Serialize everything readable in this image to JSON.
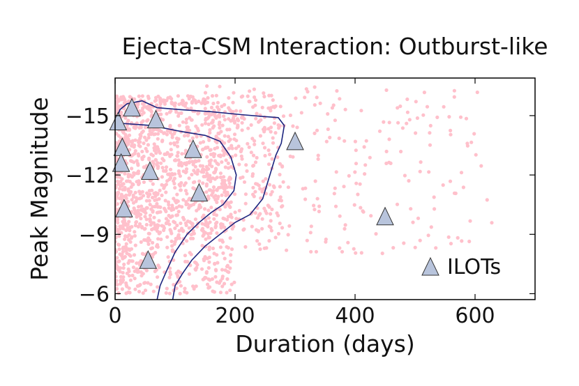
{
  "chart_data": {
    "type": "scatter",
    "title": "Ejecta-CSM Interaction: Outburst-like",
    "xlabel": "Duration (days)",
    "ylabel": "Peak Magnitude",
    "xlim": [
      0,
      700
    ],
    "ylim": [
      -5.7,
      -16.9
    ],
    "x_ticks": [
      0,
      200,
      400,
      600
    ],
    "y_ticks": [
      -6,
      -9,
      -12,
      -15
    ],
    "y_tick_labels": [
      "−6",
      "−9",
      "−12",
      "−15"
    ],
    "grid": false,
    "legend": {
      "position": "bottom-right",
      "entries": [
        "ILOTs"
      ]
    },
    "colors": {
      "simulated_points": "#ffc0cb",
      "contour": "#1a237e",
      "ilot_fill": "#b8c4dc",
      "ilot_edge": "#333333",
      "axis": "#000000"
    },
    "series": [
      {
        "name": "ILOTs",
        "marker": "triangle",
        "points": [
          [
            5,
            -14.7
          ],
          [
            12,
            -13.4
          ],
          [
            10,
            -12.6
          ],
          [
            15,
            -10.3
          ],
          [
            28,
            -15.4
          ],
          [
            58,
            -12.2
          ],
          [
            68,
            -14.8
          ],
          [
            55,
            -7.7
          ],
          [
            130,
            -13.3
          ],
          [
            140,
            -11.1
          ],
          [
            300,
            -13.7
          ],
          [
            450,
            -9.9
          ]
        ]
      },
      {
        "name": "Simulated ejecta-CSM events",
        "marker": "circle",
        "description": "dense scatter concentrated at short durations (0-250 d), peak magnitudes -6 to -16.5, sparse tail out to ~630 d",
        "count_approx": 1800
      },
      {
        "name": "Outer contour",
        "marker": "line",
        "path": [
          [
            0,
            -14.6
          ],
          [
            8,
            -15.3
          ],
          [
            20,
            -15.6
          ],
          [
            45,
            -15.75
          ],
          [
            70,
            -15.4
          ],
          [
            110,
            -15.3
          ],
          [
            160,
            -15.2
          ],
          [
            210,
            -15.05
          ],
          [
            250,
            -14.95
          ],
          [
            272,
            -14.9
          ],
          [
            282,
            -14.5
          ],
          [
            277,
            -13.6
          ],
          [
            268,
            -13.0
          ],
          [
            258,
            -12.0
          ],
          [
            246,
            -10.8
          ],
          [
            225,
            -10.0
          ],
          [
            200,
            -9.6
          ],
          [
            175,
            -9.0
          ],
          [
            150,
            -8.4
          ],
          [
            128,
            -7.7
          ],
          [
            112,
            -7.0
          ],
          [
            100,
            -6.4
          ],
          [
            96,
            -5.7
          ]
        ]
      },
      {
        "name": "Inner contour",
        "marker": "line",
        "path": [
          [
            0,
            -14.5
          ],
          [
            15,
            -14.6
          ],
          [
            60,
            -14.5
          ],
          [
            110,
            -14.2
          ],
          [
            150,
            -14.0
          ],
          [
            175,
            -13.7
          ],
          [
            193,
            -12.9
          ],
          [
            202,
            -12.0
          ],
          [
            198,
            -11.2
          ],
          [
            180,
            -10.5
          ],
          [
            160,
            -10.1
          ],
          [
            140,
            -9.6
          ],
          [
            120,
            -9.0
          ],
          [
            100,
            -8.1
          ],
          [
            85,
            -7.1
          ],
          [
            75,
            -6.4
          ],
          [
            70,
            -5.7
          ]
        ]
      }
    ]
  }
}
